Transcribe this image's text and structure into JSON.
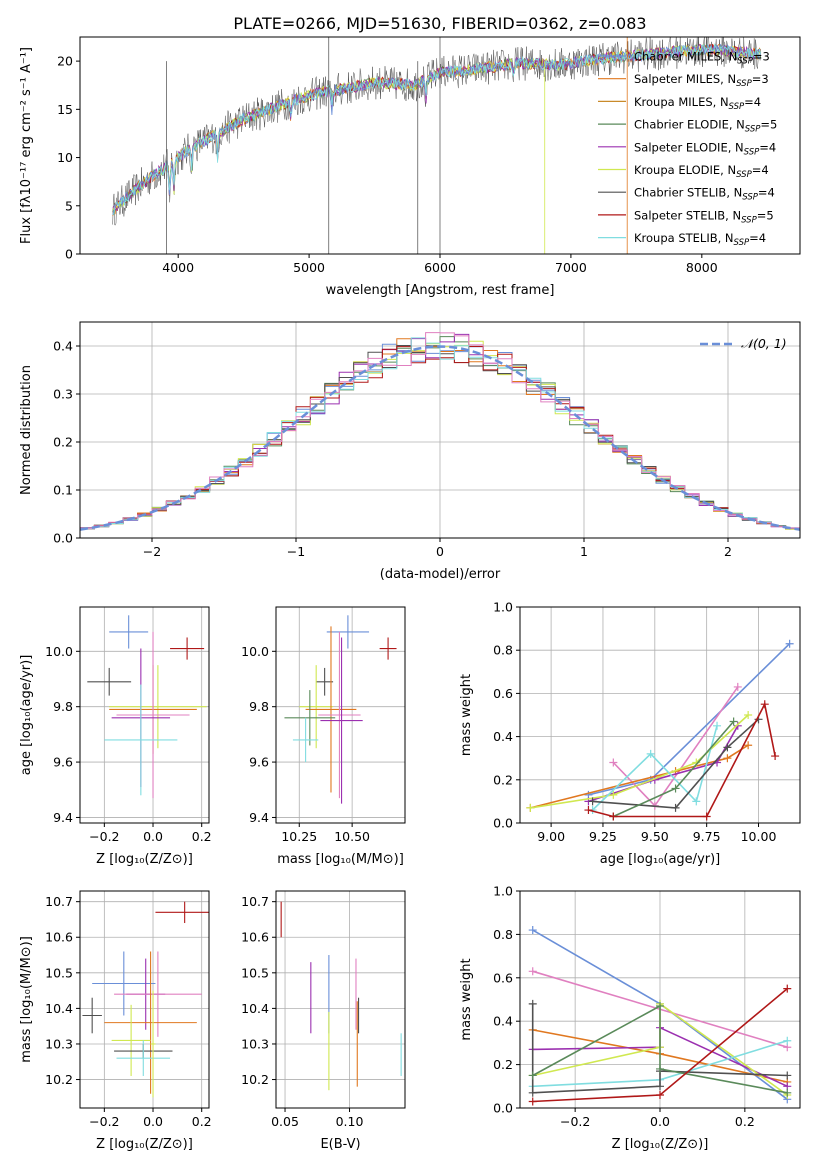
{
  "figure_title": "PLATE=0266, MJD=51630, FIBERID=0362, z=0.083",
  "colors": {
    "Chabrier MILES": "#6a8fd8",
    "Salpeter MILES": "#e07820",
    "Kroupa MILES": "#c98a2a",
    "Chabrier ELODIE": "#5a8a5a",
    "Salpeter ELODIE": "#9b30b0",
    "Kroupa ELODIE": "#d0e850",
    "Chabrier STELIB": "#505050",
    "Salpeter STELIB": "#b01818",
    "Kroupa STELIB": "#80dde0",
    "pink": "#e080c0",
    "gauss": "#6a8fd8",
    "grid": "#b0b0b0"
  },
  "chart_data": [
    {
      "id": "spectrum",
      "type": "line",
      "xlabel": "wavelength [Angstrom, rest frame]",
      "ylabel": "Flux [fλ10⁻¹⁷ erg cm⁻² s⁻¹ A⁻¹]",
      "xlim": [
        3250,
        8750
      ],
      "ylim": [
        0,
        22.5
      ],
      "xticks": [
        4000,
        5000,
        6000,
        7000,
        8000
      ],
      "yticks": [
        0,
        5,
        10,
        15,
        20
      ],
      "grid": false,
      "legend": "right",
      "legend_entries": [
        {
          "label": "Chabrier MILES, N",
          "sub": "SSP",
          "suffix": "=3",
          "color": "#6a8fd8"
        },
        {
          "label": "Salpeter MILES, N",
          "sub": "SSP",
          "suffix": "=3",
          "color": "#e07820"
        },
        {
          "label": "Kroupa MILES, N",
          "sub": "SSP",
          "suffix": "=4",
          "color": "#c98a2a"
        },
        {
          "label": "Chabrier ELODIE, N",
          "sub": "SSP",
          "suffix": "=5",
          "color": "#5a8a5a"
        },
        {
          "label": "Salpeter ELODIE, N",
          "sub": "SSP",
          "suffix": "=4",
          "color": "#9b30b0"
        },
        {
          "label": "Kroupa ELODIE, N",
          "sub": "SSP",
          "suffix": "=4",
          "color": "#d0e850"
        },
        {
          "label": "Chabrier STELIB, N",
          "sub": "SSP",
          "suffix": "=4",
          "color": "#505050"
        },
        {
          "label": "Salpeter STELIB, N",
          "sub": "SSP",
          "suffix": "=5",
          "color": "#b01818"
        },
        {
          "label": "Kroupa STELIB, N",
          "sub": "SSP",
          "suffix": "=4",
          "color": "#80dde0"
        }
      ],
      "continuum": [
        [
          3500,
          4.5
        ],
        [
          3700,
          7
        ],
        [
          3900,
          9
        ],
        [
          4000,
          10
        ],
        [
          4100,
          11
        ],
        [
          4300,
          12.5
        ],
        [
          4500,
          14
        ],
        [
          4700,
          15
        ],
        [
          4900,
          16
        ],
        [
          5100,
          16.8
        ],
        [
          5300,
          17.2
        ],
        [
          5500,
          17.8
        ],
        [
          5800,
          17.5
        ],
        [
          6000,
          18.8
        ],
        [
          6300,
          19.2
        ],
        [
          6600,
          19.8
        ],
        [
          6900,
          19.6
        ],
        [
          7200,
          20.2
        ],
        [
          7500,
          20.6
        ],
        [
          7800,
          21
        ],
        [
          8100,
          21.2
        ],
        [
          8400,
          20.8
        ]
      ],
      "absorption": [
        [
          3934,
          3
        ],
        [
          3968,
          3
        ],
        [
          4102,
          2
        ],
        [
          4300,
          2.5
        ],
        [
          4861,
          1.5
        ],
        [
          5175,
          2
        ],
        [
          5893,
          2
        ],
        [
          6563,
          1
        ],
        [
          8542,
          2
        ]
      ],
      "spikes": [
        5150,
        5830,
        6000,
        6800,
        7430,
        3910
      ]
    },
    {
      "id": "residuals",
      "type": "histogram",
      "xlabel": "(data-model)/error",
      "ylabel": "Normed distribution",
      "xlim": [
        -2.5,
        2.5
      ],
      "ylim": [
        0,
        0.45
      ],
      "xticks": [
        -2,
        -1,
        0,
        1,
        2
      ],
      "yticks": [
        0.0,
        0.1,
        0.2,
        0.3,
        0.4
      ],
      "grid": true,
      "legend": "top-right",
      "gauss_label": "𝒩(0, 1)",
      "bin_width": 0.1
    },
    {
      "id": "age_vs_Z",
      "type": "errorbar",
      "xlabel": "Z [log₁₀(Z/Z⊙)]",
      "ylabel": "age  [log₁₀(age/yr)]",
      "xlim": [
        -0.3,
        0.23
      ],
      "ylim": [
        9.38,
        10.16
      ],
      "xticks": [
        -0.2,
        0.0,
        0.2
      ],
      "yticks": [
        9.4,
        9.6,
        9.8,
        10.0
      ],
      "grid": true,
      "points": [
        {
          "x": -0.1,
          "y": 10.07,
          "xerr": 0.08,
          "yerr": 0.06,
          "c": "#6a8fd8"
        },
        {
          "x": 0.14,
          "y": 10.01,
          "xerr": 0.07,
          "yerr": 0.04,
          "c": "#b01818"
        },
        {
          "x": -0.18,
          "y": 9.89,
          "xerr": 0.09,
          "yerr": 0.05,
          "c": "#505050"
        },
        {
          "x": 0.02,
          "y": 9.8,
          "xerr": 0.2,
          "yerr": 0.15,
          "c": "#d0e850"
        },
        {
          "x": 0.0,
          "y": 9.79,
          "xerr": 0.18,
          "yerr": 0.16,
          "c": "#e07820"
        },
        {
          "x": 0.0,
          "y": 9.77,
          "xerr": 0.15,
          "yerr": 0.3,
          "c": "#e080c0"
        },
        {
          "x": -0.05,
          "y": 9.76,
          "xerr": 0.12,
          "yerr": 0.25,
          "c": "#9b30b0"
        },
        {
          "x": -0.05,
          "y": 9.68,
          "xerr": 0.15,
          "yerr": 0.2,
          "c": "#80dde0"
        }
      ]
    },
    {
      "id": "age_vs_mass",
      "type": "errorbar",
      "xlabel": "mass [log₁₀(M/M⊙)]",
      "ylabel": "",
      "xlim": [
        10.14,
        10.75
      ],
      "ylim": [
        9.38,
        10.16
      ],
      "xticks": [
        10.25,
        10.5
      ],
      "ytick_labels": [
        9.4,
        9.6,
        9.8,
        10.0
      ],
      "grid": true,
      "points": [
        {
          "x": 10.48,
          "y": 10.07,
          "xerr": 0.1,
          "yerr": 0.06,
          "c": "#6a8fd8"
        },
        {
          "x": 10.67,
          "y": 10.01,
          "xerr": 0.04,
          "yerr": 0.04,
          "c": "#b01818"
        },
        {
          "x": 10.37,
          "y": 9.89,
          "xerr": 0.04,
          "yerr": 0.05,
          "c": "#505050"
        },
        {
          "x": 10.33,
          "y": 9.8,
          "xerr": 0.08,
          "yerr": 0.15,
          "c": "#d0e850"
        },
        {
          "x": 10.4,
          "y": 9.79,
          "xerr": 0.12,
          "yerr": 0.3,
          "c": "#e07820"
        },
        {
          "x": 10.44,
          "y": 9.77,
          "xerr": 0.1,
          "yerr": 0.3,
          "c": "#e080c0"
        },
        {
          "x": 10.3,
          "y": 9.76,
          "xerr": 0.12,
          "yerr": 0.1,
          "c": "#5a8a5a"
        },
        {
          "x": 10.45,
          "y": 9.75,
          "xerr": 0.1,
          "yerr": 0.3,
          "c": "#9b30b0"
        },
        {
          "x": 10.28,
          "y": 9.68,
          "xerr": 0.06,
          "yerr": 0.08,
          "c": "#80dde0"
        }
      ]
    },
    {
      "id": "mw_vs_age",
      "type": "line",
      "xlabel": "age  [log₁₀(age/yr)]",
      "ylabel": "mass weight",
      "xlim": [
        8.85,
        10.2
      ],
      "ylim": [
        0,
        1.0
      ],
      "xticks": [
        9.0,
        9.25,
        9.5,
        9.75,
        10.0
      ],
      "yticks": [
        0.0,
        0.2,
        0.4,
        0.6,
        0.8,
        1.0
      ],
      "grid": true,
      "series": [
        {
          "c": "#6a8fd8",
          "pts": [
            [
              9.18,
              0.13
            ],
            [
              9.48,
              0.2
            ],
            [
              10.15,
              0.83
            ]
          ]
        },
        {
          "c": "#e080c0",
          "pts": [
            [
              9.3,
              0.28
            ],
            [
              9.5,
              0.08
            ],
            [
              9.9,
              0.63
            ]
          ]
        },
        {
          "c": "#e07820",
          "pts": [
            [
              8.9,
              0.07
            ],
            [
              9.6,
              0.24
            ],
            [
              9.85,
              0.3
            ],
            [
              9.95,
              0.36
            ]
          ]
        },
        {
          "c": "#9b30b0",
          "pts": [
            [
              9.18,
              0.1
            ],
            [
              9.5,
              0.2
            ],
            [
              9.8,
              0.28
            ],
            [
              9.9,
              0.45
            ]
          ]
        },
        {
          "c": "#d0e850",
          "pts": [
            [
              8.9,
              0.07
            ],
            [
              9.3,
              0.13
            ],
            [
              9.7,
              0.28
            ],
            [
              9.95,
              0.5
            ]
          ]
        },
        {
          "c": "#80dde0",
          "pts": [
            [
              9.2,
              0.06
            ],
            [
              9.48,
              0.32
            ],
            [
              9.7,
              0.1
            ],
            [
              9.8,
              0.45
            ]
          ]
        },
        {
          "c": "#505050",
          "pts": [
            [
              9.2,
              0.1
            ],
            [
              9.6,
              0.07
            ],
            [
              9.85,
              0.35
            ],
            [
              10.0,
              0.48
            ]
          ]
        },
        {
          "c": "#5a8a5a",
          "pts": [
            [
              9.3,
              0.03
            ],
            [
              9.6,
              0.16
            ],
            [
              9.88,
              0.47
            ]
          ]
        },
        {
          "c": "#b01818",
          "pts": [
            [
              9.18,
              0.06
            ],
            [
              9.3,
              0.03
            ],
            [
              9.75,
              0.03
            ],
            [
              10.03,
              0.55
            ],
            [
              10.08,
              0.31
            ]
          ]
        }
      ]
    },
    {
      "id": "mass_vs_Z",
      "type": "errorbar",
      "xlabel": "Z [log₁₀(Z/Z⊙)]",
      "ylabel": "mass [log₁₀(M/M⊙)]",
      "xlim": [
        -0.3,
        0.23
      ],
      "ylim": [
        10.12,
        10.73
      ],
      "xticks": [
        -0.2,
        0.0,
        0.2
      ],
      "yticks": [
        10.2,
        10.3,
        10.4,
        10.5,
        10.6,
        10.7
      ],
      "grid": true,
      "points": [
        {
          "x": 0.13,
          "y": 10.67,
          "xerr": 0.12,
          "yerr": 0.03,
          "c": "#b01818"
        },
        {
          "x": -0.12,
          "y": 10.47,
          "xerr": 0.13,
          "yerr": 0.09,
          "c": "#6a8fd8"
        },
        {
          "x": -0.03,
          "y": 10.44,
          "xerr": 0.08,
          "yerr": 0.1,
          "c": "#9b30b0"
        },
        {
          "x": 0.02,
          "y": 10.44,
          "xerr": 0.18,
          "yerr": 0.12,
          "c": "#e080c0"
        },
        {
          "x": -0.25,
          "y": 10.38,
          "xerr": 0.04,
          "yerr": 0.05,
          "c": "#505050"
        },
        {
          "x": -0.01,
          "y": 10.36,
          "xerr": 0.19,
          "yerr": 0.2,
          "c": "#e07820"
        },
        {
          "x": -0.09,
          "y": 10.31,
          "xerr": 0.08,
          "yerr": 0.1,
          "c": "#d0e850"
        },
        {
          "x": -0.04,
          "y": 10.28,
          "xerr": 0.12,
          "yerr": 0.02,
          "c": "#505050"
        },
        {
          "x": -0.04,
          "y": 10.26,
          "xerr": 0.11,
          "yerr": 0.05,
          "c": "#80dde0"
        },
        {
          "x": 0.0,
          "y": 10.3,
          "xerr": 0.01,
          "yerr": 0.15,
          "c": "#d0e850"
        }
      ]
    },
    {
      "id": "mass_vs_EBV",
      "type": "errorbar",
      "xlabel": "E(B-V)",
      "ylabel": "",
      "xlim": [
        0.043,
        0.143
      ],
      "ylim": [
        10.12,
        10.73
      ],
      "xticks": [
        0.05,
        0.1
      ],
      "ytick_labels": [
        10.2,
        10.3,
        10.4,
        10.5,
        10.6,
        10.7
      ],
      "grid": true,
      "points": [
        {
          "x": 0.047,
          "y": 10.65,
          "xerr": 0.0,
          "yerr": 0.05,
          "c": "#b01818"
        },
        {
          "x": 0.07,
          "y": 10.43,
          "xerr": 0.0,
          "yerr": 0.1,
          "c": "#9b30b0"
        },
        {
          "x": 0.084,
          "y": 10.44,
          "xerr": 0.0,
          "yerr": 0.11,
          "c": "#6a8fd8"
        },
        {
          "x": 0.084,
          "y": 10.28,
          "xerr": 0.0,
          "yerr": 0.11,
          "c": "#d0e850"
        },
        {
          "x": 0.105,
          "y": 10.44,
          "xerr": 0.0,
          "yerr": 0.1,
          "c": "#e080c0"
        },
        {
          "x": 0.107,
          "y": 10.38,
          "xerr": 0.0,
          "yerr": 0.05,
          "c": "#505050"
        },
        {
          "x": 0.106,
          "y": 10.3,
          "xerr": 0.0,
          "yerr": 0.12,
          "c": "#e07820"
        },
        {
          "x": 0.14,
          "y": 10.27,
          "xerr": 0.0,
          "yerr": 0.06,
          "c": "#80dde0"
        }
      ]
    },
    {
      "id": "mw_vs_Z",
      "type": "line",
      "xlabel": "Z [log₁₀(Z/Z⊙)]",
      "ylabel": "mass weight",
      "xlim": [
        -0.33,
        0.33
      ],
      "ylim": [
        0,
        1.0
      ],
      "xticks": [
        -0.2,
        0.0,
        0.2
      ],
      "yticks": [
        0.0,
        0.2,
        0.4,
        0.6,
        0.8,
        1.0
      ],
      "grid": true,
      "series": [
        {
          "c": "#6a8fd8",
          "pts": [
            [
              -0.3,
              0.82
            ],
            [
              0.0,
              0.48
            ],
            [
              0.3,
              0.04
            ]
          ]
        },
        {
          "c": "#e080c0",
          "pts": [
            [
              -0.3,
              0.63
            ],
            [
              0.3,
              0.28
            ]
          ]
        },
        {
          "c": "#e07820",
          "pts": [
            [
              -0.3,
              0.36
            ],
            [
              0.0,
              0.25
            ],
            [
              0.3,
              0.12
            ]
          ]
        },
        {
          "c": "#9b30b0",
          "pts": [
            [
              -0.3,
              0.27
            ],
            [
              0.0,
              0.28
            ],
            [
              0.0,
              0.37
            ],
            [
              0.3,
              0.1
            ]
          ]
        },
        {
          "c": "#d0e850",
          "pts": [
            [
              -0.3,
              0.15
            ],
            [
              0.0,
              0.28
            ],
            [
              0.0,
              0.48
            ],
            [
              0.3,
              0.06
            ]
          ]
        },
        {
          "c": "#80dde0",
          "pts": [
            [
              -0.3,
              0.1
            ],
            [
              0.0,
              0.13
            ],
            [
              0.3,
              0.31
            ]
          ]
        },
        {
          "c": "#505050",
          "pts": [
            [
              -0.3,
              0.48
            ],
            [
              -0.3,
              0.07
            ],
            [
              0.0,
              0.1
            ],
            [
              0.0,
              0.17
            ],
            [
              0.3,
              0.15
            ]
          ]
        },
        {
          "c": "#5a8a5a",
          "pts": [
            [
              -0.3,
              0.15
            ],
            [
              0.0,
              0.47
            ],
            [
              0.0,
              0.18
            ],
            [
              0.3,
              0.07
            ]
          ]
        },
        {
          "c": "#b01818",
          "pts": [
            [
              -0.3,
              0.03
            ],
            [
              0.0,
              0.06
            ],
            [
              0.3,
              0.55
            ]
          ]
        }
      ]
    }
  ]
}
